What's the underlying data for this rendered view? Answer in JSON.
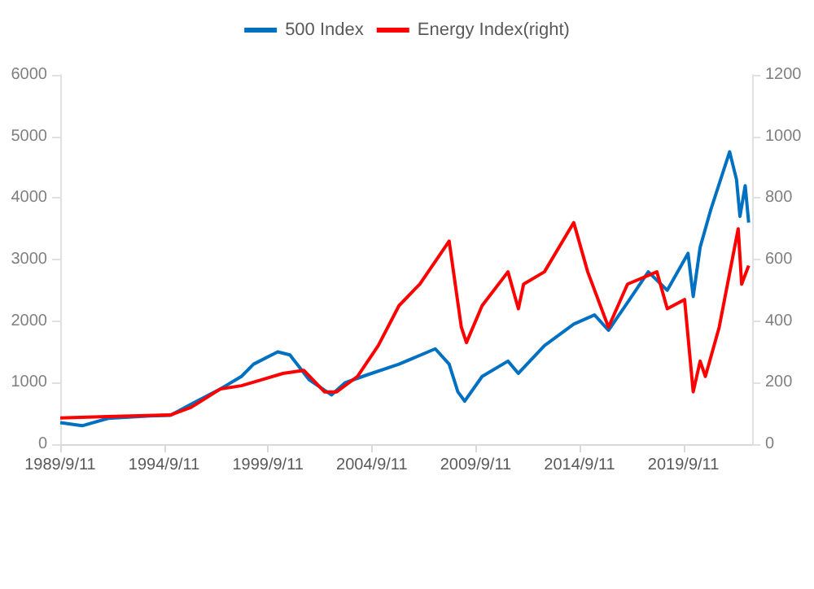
{
  "chart_data": {
    "type": "line",
    "xlim": [
      "1989-09-11",
      "2023-01-01"
    ],
    "xticks": [
      {
        "value": "1989-09-11",
        "label": "1989/9/11"
      },
      {
        "value": "1994-09-11",
        "label": "1994/9/11"
      },
      {
        "value": "1999-09-11",
        "label": "1999/9/11"
      },
      {
        "value": "2004-09-11",
        "label": "2004/9/11"
      },
      {
        "value": "2009-09-11",
        "label": "2009/9/11"
      },
      {
        "value": "2014-09-11",
        "label": "2014/9/11"
      },
      {
        "value": "2019-09-11",
        "label": "2019/9/11"
      }
    ],
    "ylim": [
      0,
      6000
    ],
    "yticks": [
      0,
      1000,
      2000,
      3000,
      4000,
      5000,
      6000
    ],
    "y2lim": [
      0,
      1200
    ],
    "y2ticks": [
      0,
      200,
      400,
      600,
      800,
      1000,
      1200
    ],
    "legend": "top",
    "grid": false,
    "marker": "none",
    "series": [
      {
        "name": "500 Index",
        "color": "#0070c0",
        "x": [
          "1989-09-11",
          "1990-10",
          "1992-01",
          "1994-01",
          "1995-01",
          "1996-01",
          "1997-06",
          "1998-06",
          "1999-01",
          "2000-03",
          "2000-10",
          "2001-09",
          "2002-10",
          "2003-06",
          "2004-06",
          "2006-01",
          "2007-10",
          "2008-06",
          "2008-11",
          "2009-03",
          "2010-01",
          "2011-04",
          "2011-10",
          "2013-01",
          "2014-06",
          "2015-06",
          "2016-02",
          "2017-01",
          "2018-01",
          "2018-12",
          "2019-12",
          "2020-03",
          "2020-07",
          "2021-01",
          "2021-12",
          "2022-04",
          "2022-06",
          "2022-09",
          "2022-11"
        ],
        "values": [
          350,
          300,
          420,
          460,
          470,
          650,
          900,
          1100,
          1300,
          1500,
          1450,
          1050,
          800,
          1000,
          1120,
          1300,
          1550,
          1300,
          850,
          700,
          1100,
          1350,
          1150,
          1600,
          1950,
          2100,
          1850,
          2300,
          2800,
          2500,
          3100,
          2400,
          3200,
          3800,
          4750,
          4300,
          3700,
          4200,
          3600
        ]
      },
      {
        "name": "Energy Index(right)",
        "color": "#ff0000",
        "axis": "y2",
        "x": [
          "1989-09-11",
          "1992-01",
          "1995-01",
          "1996-01",
          "1997-06",
          "1998-06",
          "1999-06",
          "2000-06",
          "2001-06",
          "2002-06",
          "2003-01",
          "2004-01",
          "2005-01",
          "2006-01",
          "2007-01",
          "2008-06",
          "2009-01",
          "2009-04",
          "2010-01",
          "2011-04",
          "2011-10",
          "2012-01",
          "2013-01",
          "2014-06",
          "2015-02",
          "2016-02",
          "2017-01",
          "2018-06",
          "2018-12",
          "2019-10",
          "2020-03",
          "2020-07",
          "2020-10",
          "2021-06",
          "2022-05",
          "2022-07",
          "2022-11"
        ],
        "values": [
          85,
          90,
          95,
          120,
          180,
          190,
          210,
          230,
          240,
          170,
          170,
          220,
          320,
          450,
          520,
          660,
          380,
          330,
          450,
          560,
          440,
          520,
          560,
          720,
          560,
          380,
          520,
          560,
          440,
          470,
          170,
          270,
          220,
          380,
          700,
          520,
          580
        ]
      }
    ]
  }
}
